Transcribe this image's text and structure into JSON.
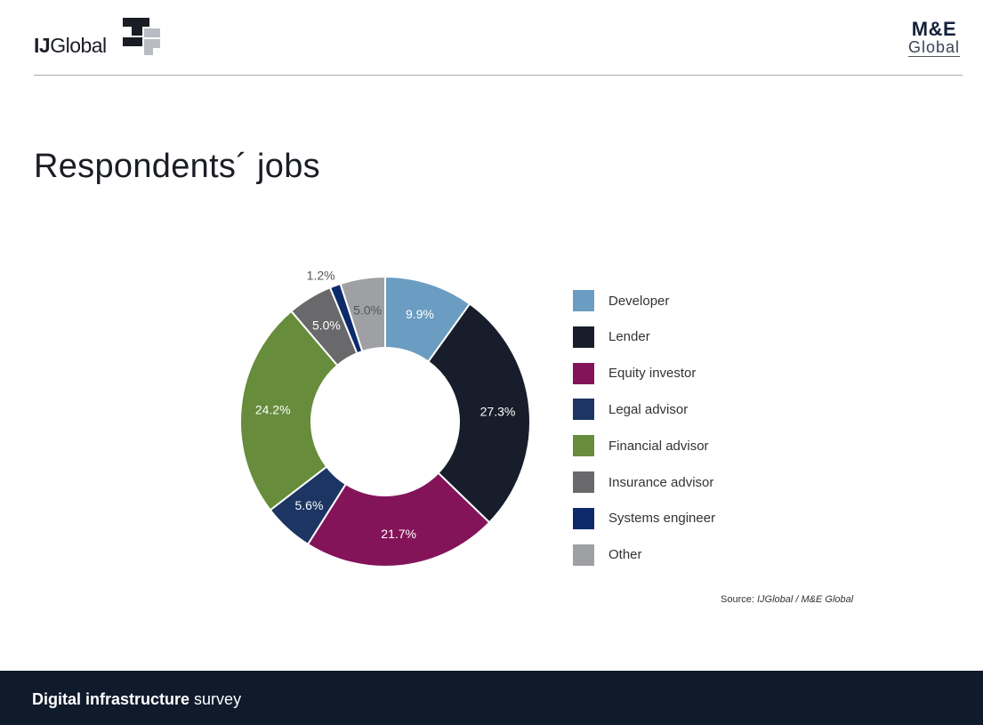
{
  "header": {
    "left_logo": {
      "bold": "IJ",
      "rest": "Global"
    },
    "right_logo": {
      "top": "M&E",
      "bottom": "Global"
    }
  },
  "page_title": "Respondents´ jobs",
  "chart_data": {
    "type": "pie",
    "donut": true,
    "title": "",
    "slices": [
      {
        "name": "Developer",
        "value": 9.9,
        "label": "9.9%",
        "color": "#6b9cc2"
      },
      {
        "name": "Lender",
        "value": 27.3,
        "label": "27.3%",
        "color": "#171d2a"
      },
      {
        "name": "Equity investor",
        "value": 21.7,
        "label": "21.7%",
        "color": "#84145a"
      },
      {
        "name": "Legal advisor",
        "value": 5.6,
        "label": "5.6%",
        "color": "#1c3563"
      },
      {
        "name": "Financial advisor",
        "value": 24.2,
        "label": "24.2%",
        "color": "#678c3b"
      },
      {
        "name": "Insurance advisor",
        "value": 5.0,
        "label": "5.0%",
        "color": "#69696b"
      },
      {
        "name": "Systems engineer",
        "value": 1.2,
        "label": "1.2%",
        "color": "#0d2b6b"
      },
      {
        "name": "Other",
        "value": 5.0,
        "label": "5.0%",
        "color": "#9ea0a3"
      }
    ],
    "legend_position": "right"
  },
  "source": {
    "prefix": "Source:",
    "text": "IJGlobal / M&E Global"
  },
  "footer": {
    "bold": "Digital infrastructure",
    "rest": "survey"
  }
}
